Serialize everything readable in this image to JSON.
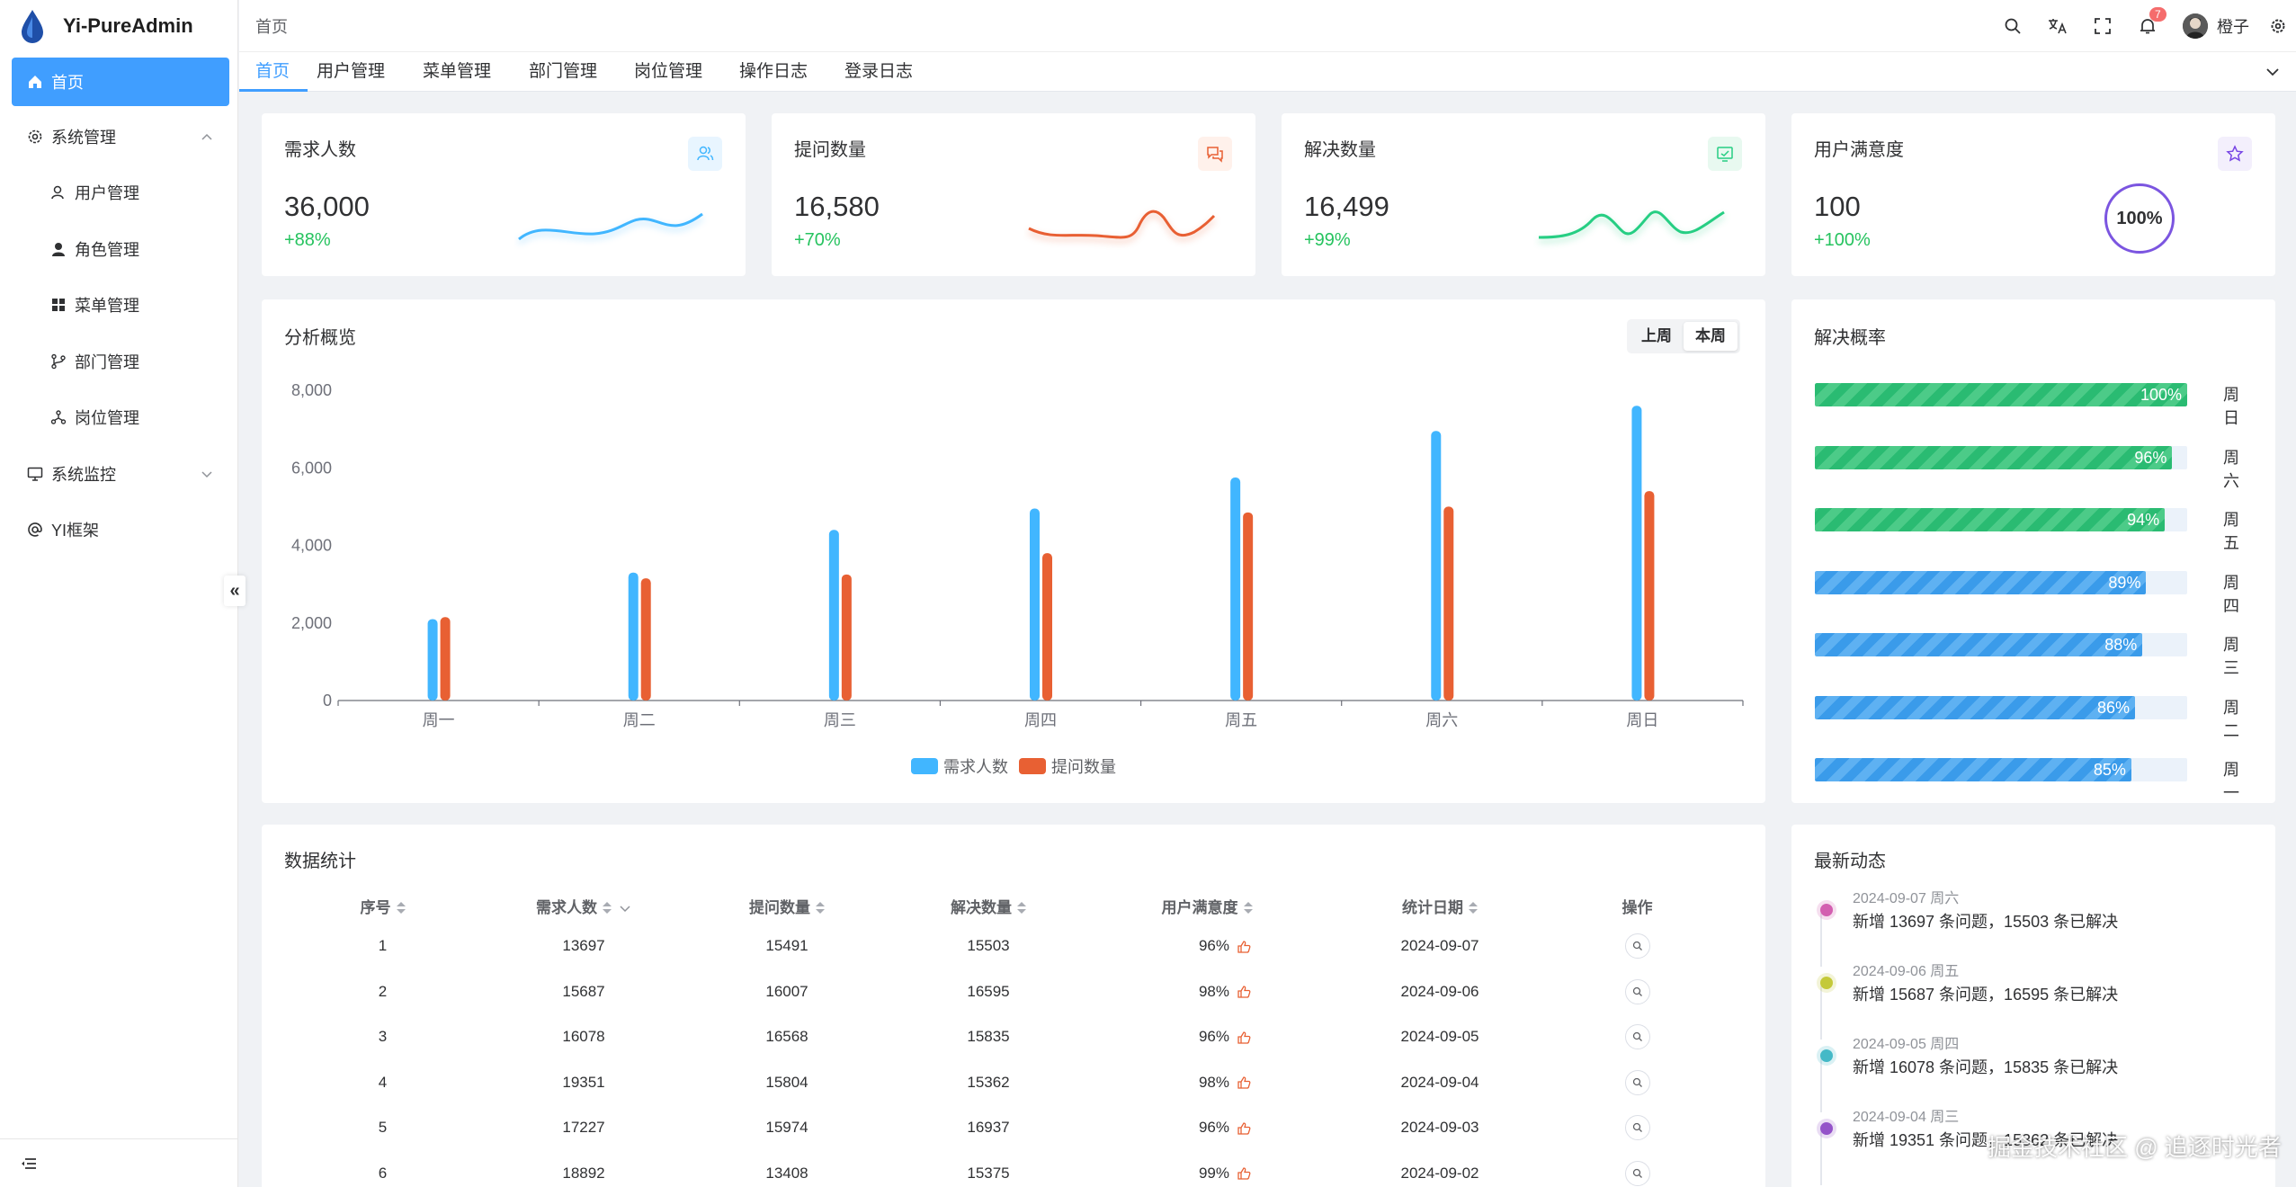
{
  "app": {
    "title": "Yi-PureAdmin"
  },
  "sidebar": {
    "items": [
      {
        "label": "首页",
        "icon": "home-icon"
      },
      {
        "label": "系统管理",
        "icon": "gear-icon"
      },
      {
        "label": "用户管理",
        "icon": "user-icon"
      },
      {
        "label": "角色管理",
        "icon": "role-icon"
      },
      {
        "label": "菜单管理",
        "icon": "menu-grid-icon"
      },
      {
        "label": "部门管理",
        "icon": "branch-icon"
      },
      {
        "label": "岗位管理",
        "icon": "position-icon"
      },
      {
        "label": "系统监控",
        "icon": "monitor-icon"
      },
      {
        "label": "YI框架",
        "icon": "at-icon"
      }
    ]
  },
  "header": {
    "breadcrumb": "首页",
    "username": "橙子",
    "notification_count": "7"
  },
  "tags": [
    "首页",
    "用户管理",
    "菜单管理",
    "部门管理",
    "岗位管理",
    "操作日志",
    "登录日志"
  ],
  "stats": [
    {
      "title": "需求人数",
      "value": "36,000",
      "change": "+88%",
      "color": "#41b6ff"
    },
    {
      "title": "提问数量",
      "value": "16,580",
      "change": "+70%",
      "color": "#e85f33"
    },
    {
      "title": "解决数量",
      "value": "16,499",
      "change": "+99%",
      "color": "#26ce83"
    },
    {
      "title": "用户满意度",
      "value": "100",
      "change": "+100%",
      "color": "#7846e5",
      "ring": "100%"
    }
  ],
  "overview": {
    "title": "分析概览",
    "switch": [
      "上周",
      "本周"
    ],
    "switch_selected": "本周"
  },
  "chart_data": {
    "type": "bar",
    "categories": [
      "周一",
      "周二",
      "周三",
      "周四",
      "周五",
      "周六",
      "周日"
    ],
    "series": [
      {
        "name": "需求人数",
        "values": [
          2100,
          3300,
          4400,
          4950,
          5750,
          6950,
          7600
        ],
        "color": "#41b6ff"
      },
      {
        "name": "提问数量",
        "values": [
          2150,
          3150,
          3250,
          3800,
          4850,
          5000,
          5400
        ],
        "color": "#e86033"
      }
    ],
    "yticks": [
      "8,000",
      "6,000",
      "4,000",
      "2,000",
      "0"
    ],
    "ylim": [
      0,
      8000
    ],
    "legend": "bottom-center"
  },
  "solve_rate": {
    "title": "解决概率",
    "rows": [
      {
        "day": "周日",
        "percent": 100,
        "label": "100%",
        "color": "green"
      },
      {
        "day": "周六",
        "percent": 96,
        "label": "96%",
        "color": "green"
      },
      {
        "day": "周五",
        "percent": 94,
        "label": "94%",
        "color": "green"
      },
      {
        "day": "周四",
        "percent": 89,
        "label": "89%",
        "color": "blue"
      },
      {
        "day": "周三",
        "percent": 88,
        "label": "88%",
        "color": "blue"
      },
      {
        "day": "周二",
        "percent": 86,
        "label": "86%",
        "color": "blue"
      },
      {
        "day": "周一",
        "percent": 85,
        "label": "85%",
        "color": "blue"
      }
    ]
  },
  "table": {
    "title": "数据统计",
    "columns": [
      "序号",
      "需求人数",
      "提问数量",
      "解决数量",
      "用户满意度",
      "统计日期",
      "操作"
    ],
    "rows": [
      [
        "1",
        "13697",
        "15491",
        "15503",
        "96%",
        "2024-09-07"
      ],
      [
        "2",
        "15687",
        "16007",
        "16595",
        "98%",
        "2024-09-06"
      ],
      [
        "3",
        "16078",
        "16568",
        "15835",
        "96%",
        "2024-09-05"
      ],
      [
        "4",
        "19351",
        "15804",
        "15362",
        "98%",
        "2024-09-04"
      ],
      [
        "5",
        "17227",
        "15974",
        "16937",
        "96%",
        "2024-09-03"
      ],
      [
        "6",
        "18892",
        "13408",
        "15375",
        "99%",
        "2024-09-02"
      ]
    ]
  },
  "timeline": {
    "title": "最新动态",
    "items": [
      {
        "time": "2024-09-07 周六",
        "text": "新增 13697 条问题，15503 条已解决",
        "color": "#d35fb0"
      },
      {
        "time": "2024-09-06 周五",
        "text": "新增 15687 条问题，16595 条已解决",
        "color": "#c4c93a"
      },
      {
        "time": "2024-09-05 周四",
        "text": "新增 16078 条问题，15835 条已解决",
        "color": "#45b9c7"
      },
      {
        "time": "2024-09-04 周三",
        "text": "新增 19351 条问题，15362 条已解决",
        "color": "#9453c9"
      }
    ]
  },
  "watermark": "掘金技术社区 @ 追逐时光者"
}
